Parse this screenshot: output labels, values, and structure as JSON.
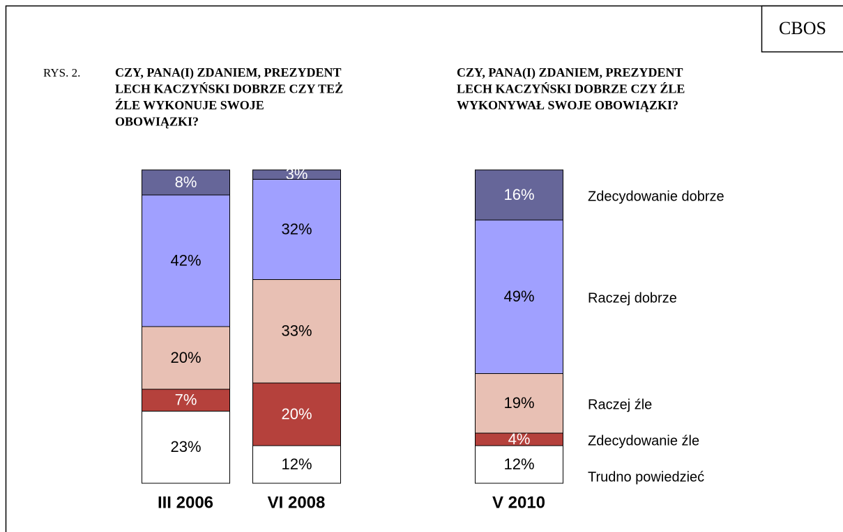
{
  "source": "CBOS",
  "figure_label": "RYS. 2.",
  "chart_data": {
    "type": "stacked_bar",
    "titles": [
      [
        "CZY, PANA(I) ZDANIEM, PREZYDENT",
        "LECH KACZYŃSKI DOBRZE CZY TEŻ",
        "ŹLE WYKONUJE SWOJE",
        "OBOWIĄZKI?"
      ],
      [
        "CZY, PANA(I) ZDANIEM, PREZYDENT",
        "LECH KACZYŃSKI DOBRZE CZY ŹLE",
        "WYKONYWAŁ SWOJE OBOWIĄZKI?"
      ]
    ],
    "categories": [
      "III 2006",
      "VI 2008",
      "V 2010"
    ],
    "ylim": [
      0,
      100
    ],
    "series": [
      {
        "name": "Zdecydowanie dobrze",
        "color": "#666699",
        "label_color": "#ffffff",
        "values": [
          8,
          3,
          16
        ],
        "value_labels": [
          "8%",
          "3%",
          "16%"
        ]
      },
      {
        "name": "Raczej dobrze",
        "color": "#a0a0ff",
        "label_color": "#000000",
        "values": [
          42,
          32,
          49
        ],
        "value_labels": [
          "42%",
          "32%",
          "49%"
        ]
      },
      {
        "name": "Raczej źle",
        "color": "#e8c0b4",
        "label_color": "#000000",
        "values": [
          20,
          33,
          19
        ],
        "value_labels": [
          "20%",
          "33%",
          "19%"
        ]
      },
      {
        "name": "Zdecydowanie źle",
        "color": "#b5413c",
        "label_color": "#ffffff",
        "values": [
          7,
          20,
          4
        ],
        "value_labels": [
          "7%",
          "20%",
          "4%"
        ]
      },
      {
        "name": "Trudno powiedzieć",
        "color": "#ffffff",
        "label_color": "#000000",
        "values": [
          23,
          12,
          12
        ],
        "value_labels": [
          "23%",
          "12%",
          "12%"
        ]
      }
    ]
  }
}
